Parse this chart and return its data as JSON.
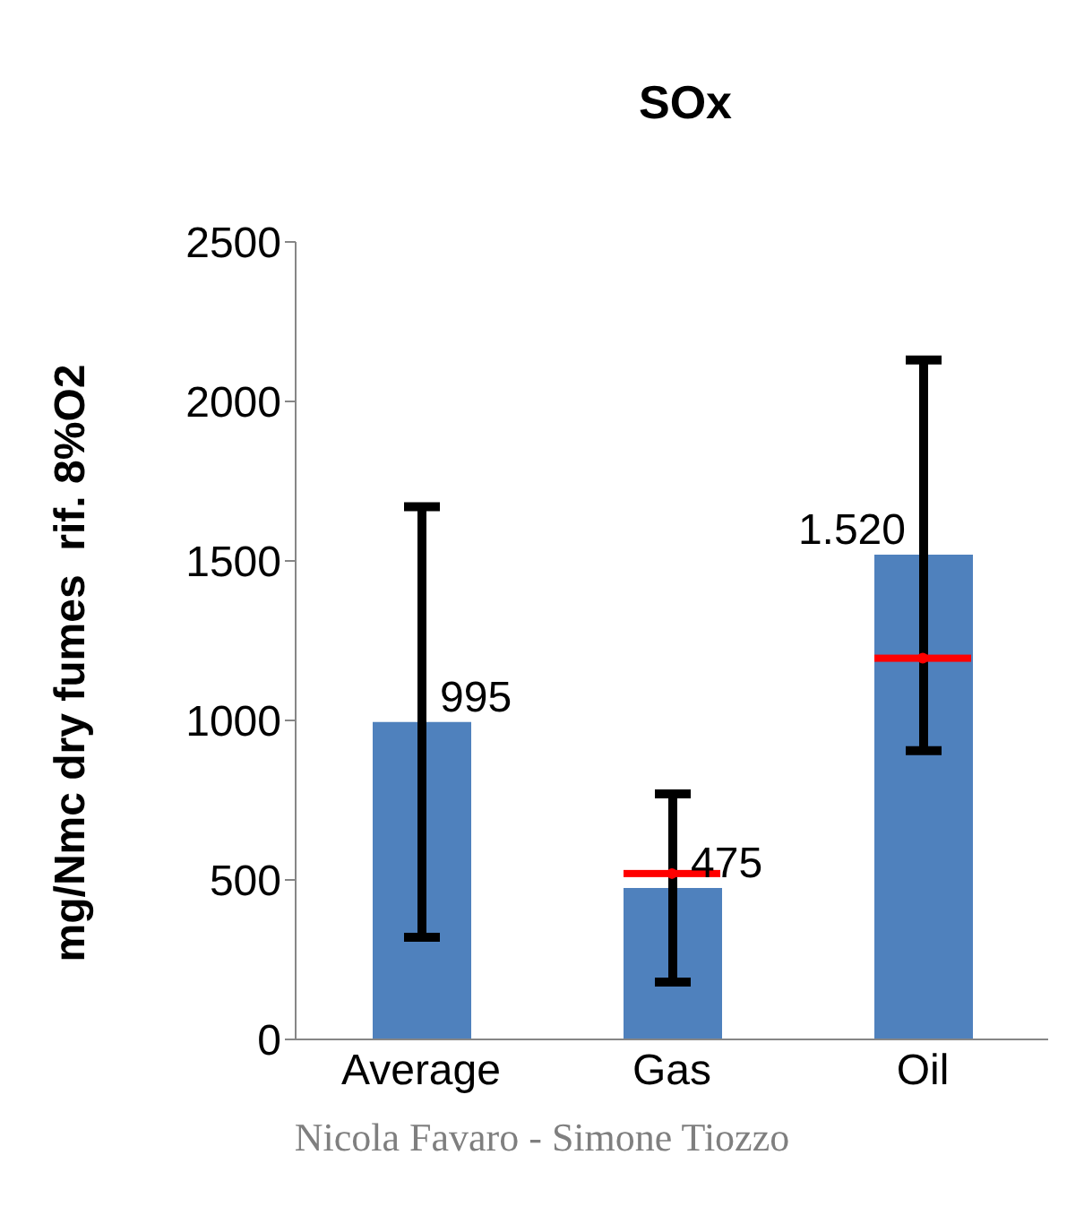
{
  "chart_data": {
    "type": "bar",
    "title": "SOx",
    "ylabel": "mg/Nmc dry fumes  rif. 8%O2",
    "categories": [
      "Average",
      "Gas",
      "Oil"
    ],
    "series": [
      {
        "type": "bar",
        "color": "#4f81bd",
        "values": [
          995,
          475,
          1520
        ],
        "value_labels": [
          "995",
          "475",
          "1.520"
        ],
        "errors": [
          [
            320,
            1670
          ],
          [
            180,
            770
          ],
          [
            905,
            2130
          ]
        ]
      },
      {
        "type": "scatter",
        "color": "#ff0000",
        "values": [
          null,
          520,
          1195
        ]
      }
    ],
    "ylim": [
      0,
      2500
    ],
    "yticks": [
      0,
      500,
      1000,
      1500,
      2000,
      2500
    ],
    "grid": false,
    "legend": false,
    "annotations": [
      "Nicola Favaro - Simone Tiozzo"
    ]
  }
}
